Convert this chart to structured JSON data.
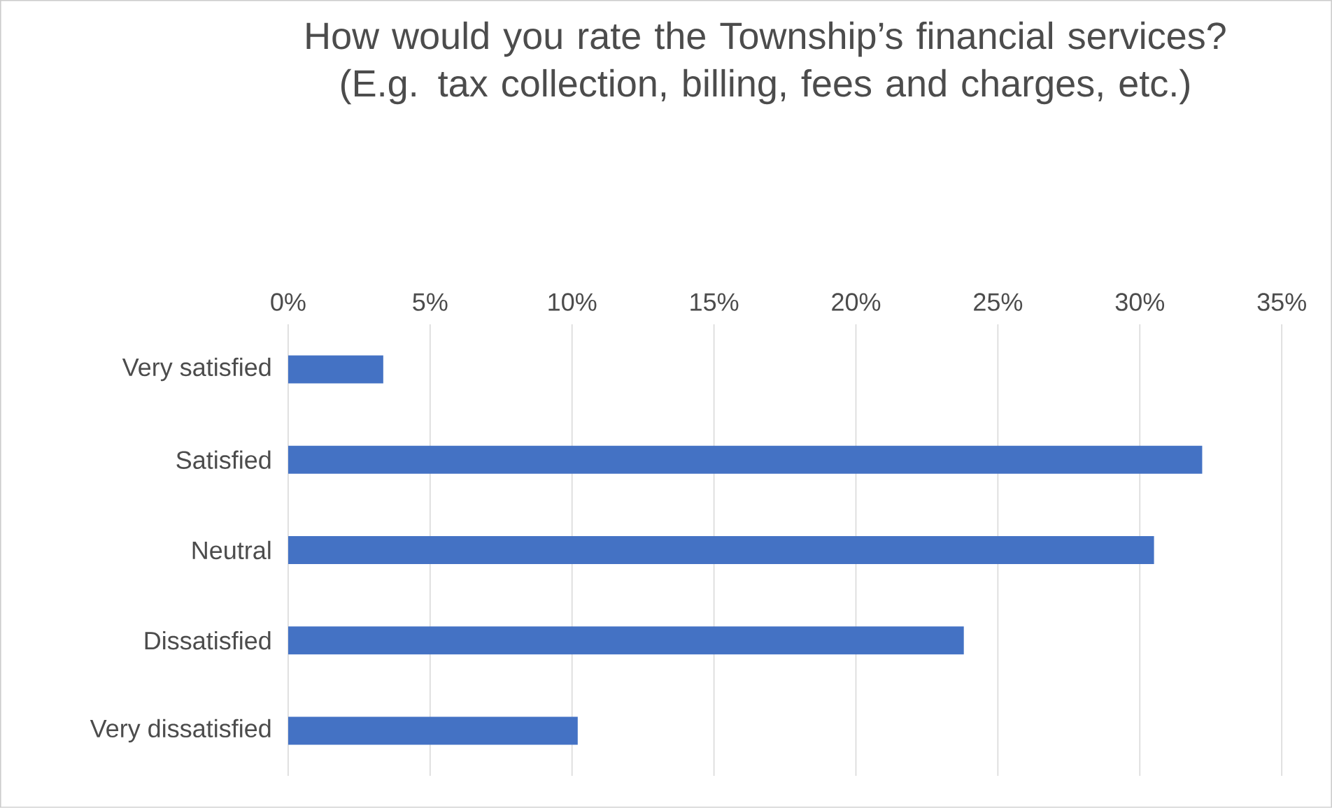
{
  "chart_data": {
    "type": "bar",
    "orientation": "horizontal",
    "title": "How would you rate the Township’s financial services? (E.g. tax collection, billing, fees and charges, etc.)",
    "categories": [
      "Very satisfied",
      "Satisfied",
      "Neutral",
      "Dissatisfied",
      "Very dissatisfied"
    ],
    "values": [
      3.35,
      32.2,
      30.5,
      23.8,
      10.2
    ],
    "color": "#4472c4",
    "xlim": [
      0,
      35
    ],
    "xticks": [
      {
        "value": 0,
        "label": "0%"
      },
      {
        "value": 5,
        "label": "5%"
      },
      {
        "value": 10,
        "label": "10%"
      },
      {
        "value": 15,
        "label": "15%"
      },
      {
        "value": 20,
        "label": "20%"
      },
      {
        "value": 25,
        "label": "25%"
      },
      {
        "value": 30,
        "label": "30%"
      },
      {
        "value": 35,
        "label": "35%"
      }
    ],
    "grid": "x"
  }
}
